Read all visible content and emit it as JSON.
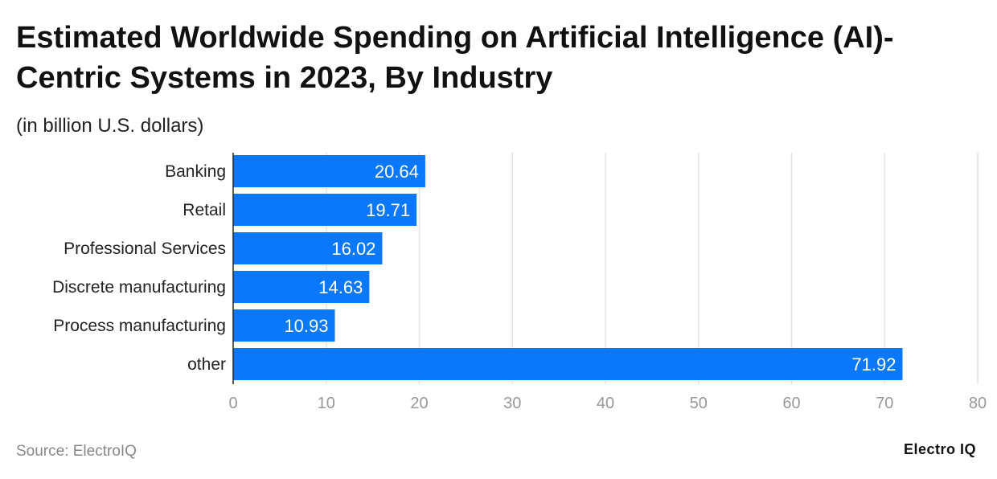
{
  "chart_data": {
    "type": "bar",
    "orientation": "horizontal",
    "title": "Estimated Worldwide Spending on Artificial Intelligence (AI)-Centric Systems in 2023, By Industry",
    "subtitle": "(in billion U.S. dollars)",
    "categories": [
      "Banking",
      "Retail",
      "Professional Services",
      "Discrete manufacturing",
      "Process manufacturing",
      "other"
    ],
    "values": [
      20.64,
      19.71,
      16.02,
      14.63,
      10.93,
      71.92
    ],
    "value_labels": [
      "20.64",
      "19.71",
      "16.02",
      "14.63",
      "10.93",
      "71.92"
    ],
    "xlim": [
      0,
      80
    ],
    "xticks": [
      "0",
      "10",
      "20",
      "30",
      "40",
      "50",
      "60",
      "70",
      "80"
    ],
    "grid": true,
    "bar_color": "#0a78fa"
  },
  "footer": {
    "source": "Source: ElectroIQ",
    "logo": "Electro IQ"
  }
}
